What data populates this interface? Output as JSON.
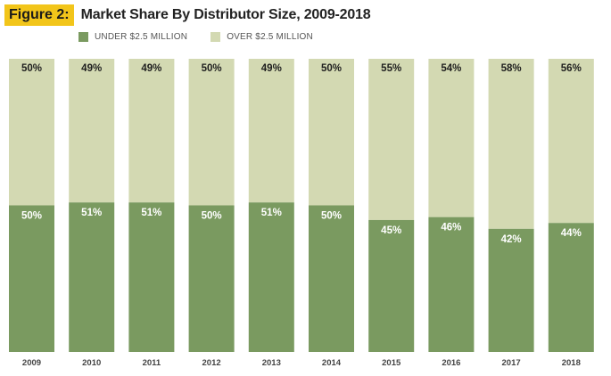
{
  "figure": {
    "badge": "Figure 2:",
    "title": "Market Share By Distributor Size, 2009-2018"
  },
  "colors": {
    "under": "#7a9a60",
    "over": "#d3d9b2",
    "under_label": "#ffffff",
    "over_label": "#1e1e1e",
    "badge": "#f2c51a"
  },
  "chart_data": {
    "type": "bar",
    "stacked": true,
    "categories": [
      "2009",
      "2010",
      "2011",
      "2012",
      "2013",
      "2014",
      "2015",
      "2016",
      "2017",
      "2018"
    ],
    "series": [
      {
        "name": "UNDER $2.5 MILLION",
        "values": [
          50,
          51,
          51,
          50,
          51,
          50,
          45,
          46,
          42,
          44
        ]
      },
      {
        "name": "OVER $2.5 MILLION",
        "values": [
          50,
          49,
          49,
          50,
          49,
          50,
          55,
          54,
          58,
          56
        ]
      }
    ],
    "value_suffix": "%",
    "legend_position": "top-left",
    "ylim": [
      0,
      100
    ],
    "grid": false
  }
}
